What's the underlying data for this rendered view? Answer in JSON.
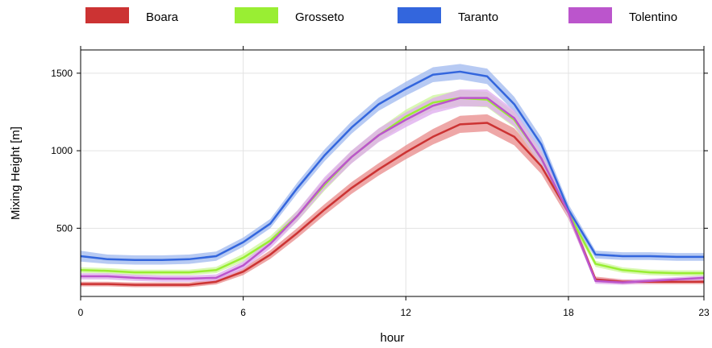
{
  "chart_data": {
    "type": "line",
    "xlabel": "hour",
    "ylabel": "Mixing Height [m]",
    "xlim": [
      0,
      23
    ],
    "ylim": [
      60,
      1650
    ],
    "x_ticks": [
      0,
      6,
      12,
      18,
      23
    ],
    "y_ticks": [
      500,
      1000,
      1500
    ],
    "grid": true,
    "legend_position": "top",
    "x": [
      0,
      1,
      2,
      3,
      4,
      5,
      6,
      7,
      8,
      9,
      10,
      11,
      12,
      13,
      14,
      15,
      16,
      17,
      18,
      19,
      20,
      21,
      22,
      23
    ],
    "series": [
      {
        "name": "Boara",
        "color": "#cc3333",
        "band_color": "#e88a8a",
        "values": [
          140,
          140,
          135,
          135,
          135,
          155,
          220,
          330,
          470,
          620,
          760,
          880,
          990,
          1090,
          1170,
          1180,
          1090,
          900,
          600,
          170,
          155,
          155,
          155,
          155
        ],
        "band_halfwidth": [
          15,
          15,
          15,
          15,
          15,
          18,
          22,
          28,
          32,
          35,
          38,
          40,
          45,
          50,
          55,
          55,
          55,
          50,
          40,
          18,
          15,
          15,
          15,
          15
        ]
      },
      {
        "name": "Grosseto",
        "color": "#99ee33",
        "band_color": "#ccf599",
        "values": [
          230,
          225,
          215,
          215,
          215,
          230,
          310,
          420,
          580,
          780,
          960,
          1100,
          1220,
          1310,
          1340,
          1330,
          1200,
          950,
          600,
          270,
          230,
          215,
          210,
          210
        ],
        "band_halfwidth": [
          18,
          18,
          18,
          18,
          18,
          20,
          25,
          30,
          35,
          38,
          40,
          42,
          45,
          48,
          50,
          50,
          48,
          45,
          35,
          20,
          18,
          18,
          18,
          18
        ]
      },
      {
        "name": "Taranto",
        "color": "#3366dd",
        "band_color": "#9fb8ef",
        "values": [
          320,
          300,
          295,
          295,
          300,
          320,
          410,
          530,
          760,
          970,
          1150,
          1300,
          1400,
          1490,
          1510,
          1480,
          1300,
          1040,
          620,
          330,
          320,
          320,
          315,
          315
        ],
        "band_halfwidth": [
          35,
          30,
          30,
          30,
          30,
          30,
          30,
          30,
          35,
          38,
          40,
          42,
          45,
          48,
          50,
          50,
          48,
          45,
          35,
          25,
          25,
          25,
          25,
          25
        ]
      },
      {
        "name": "Tolentino",
        "color": "#bb55cc",
        "band_color": "#ddaaee",
        "values": [
          190,
          190,
          180,
          175,
          175,
          180,
          260,
          400,
          580,
          790,
          960,
          1100,
          1200,
          1290,
          1340,
          1340,
          1210,
          950,
          600,
          160,
          150,
          160,
          170,
          180
        ],
        "band_halfwidth": [
          20,
          20,
          20,
          20,
          20,
          22,
          25,
          30,
          35,
          40,
          42,
          45,
          48,
          50,
          55,
          55,
          52,
          45,
          35,
          18,
          15,
          15,
          15,
          15
        ]
      }
    ]
  }
}
